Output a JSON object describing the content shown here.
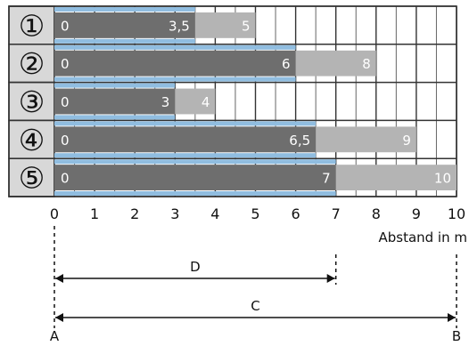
{
  "chart_data": {
    "type": "bar",
    "categories": [
      "①",
      "②",
      "③",
      "④",
      "⑤"
    ],
    "series": [
      {
        "values": [
          3.5,
          6,
          3,
          6.5,
          7
        ]
      },
      {
        "values": [
          5,
          8,
          4,
          9,
          10
        ]
      }
    ],
    "xlabel": "Abstand in m",
    "xlim": [
      0,
      10
    ],
    "x_ticks": [
      "0",
      "1",
      "2",
      "3",
      "4",
      "5",
      "6",
      "7",
      "8",
      "9",
      "10"
    ],
    "bar_labels": {
      "start": [
        "0",
        "0",
        "0",
        "0",
        "0"
      ],
      "inner": [
        "3,5",
        "6",
        "3",
        "6,5",
        "7"
      ],
      "outer": [
        "5",
        "8",
        "4",
        "9",
        "10"
      ]
    },
    "grid": true,
    "colors": {
      "inner_bar": "#6E6E6E",
      "outer_bar": "#B4B4B4",
      "stripe": "#90BDE0",
      "grid": "#333333",
      "row_label_bg": "#D8D8D8"
    },
    "annotations": {
      "left_marker": "A",
      "right_marker": "B",
      "short_span_label": "D",
      "long_span_label": "C",
      "short_span_value": 7,
      "long_span_value": 10
    }
  }
}
